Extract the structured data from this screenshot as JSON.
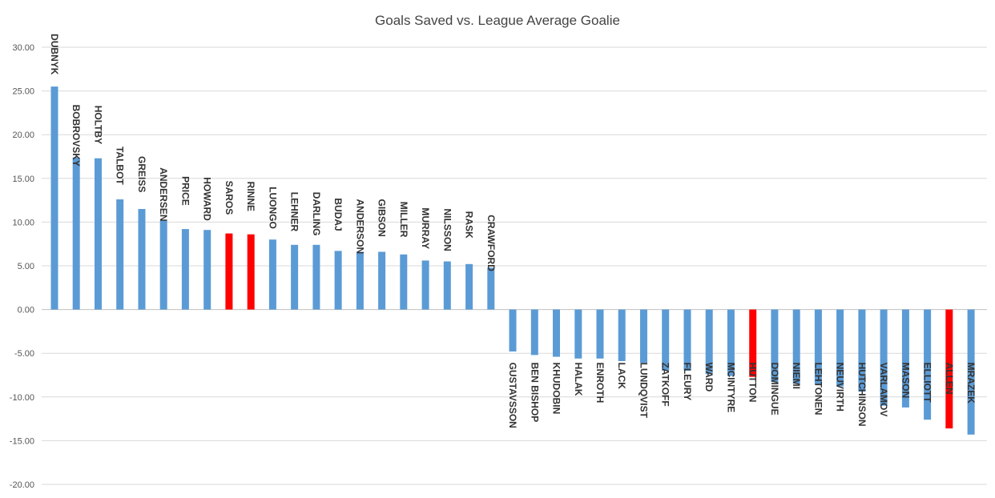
{
  "chart_data": {
    "type": "bar",
    "title": "Goals Saved vs.  League Average Goalie",
    "xlabel": "",
    "ylabel": "",
    "ylim": [
      -20,
      30
    ],
    "yticks": [
      "30.00",
      "25.00",
      "20.00",
      "15.00",
      "10.00",
      "5.00",
      "0.00",
      "-5.00",
      "-10.00",
      "-15.00",
      "-20.00"
    ],
    "ytick_values": [
      30,
      25,
      20,
      15,
      10,
      5,
      0,
      -5,
      -10,
      -15,
      -20
    ],
    "grid": true,
    "legend": "none",
    "colors": {
      "default": "#5b9bd5",
      "highlight": "#ff0000"
    },
    "categories": [
      "DUBNYK",
      "BOBROVSKY",
      "HOLTBY",
      "TALBOT",
      "GREISS",
      "ANDERSEN",
      "PRICE",
      "HOWARD",
      "SAROS",
      "RINNE",
      "LUONGO",
      "LEHNER",
      "DARLING",
      "BUDAJ",
      "ANDERSON",
      "GIBSON",
      "MILLER",
      "MURRAY",
      "NILSSON",
      "RASK",
      "CRAWFORD",
      "GUSTAVSSON",
      "BEN BISHOP",
      "KHUDOBIN",
      "HALAK",
      "ENROTH",
      "LACK",
      "LUNDQVIST",
      "ZATKOFF",
      "FLEURY",
      "WARD",
      "MCINTYRE",
      "HUTTON",
      "DOMINGUE",
      "NIEMI",
      "LEHTONEN",
      "NEUVIRTH",
      "HUTCHINSON",
      "VARLAMOV",
      "MASON",
      "ELLIOTT",
      "ALLEN",
      "MRAZEK"
    ],
    "values": [
      25.5,
      17.4,
      17.3,
      12.6,
      11.5,
      10.2,
      9.2,
      9.1,
      8.7,
      8.6,
      8.0,
      7.4,
      7.4,
      6.7,
      6.6,
      6.6,
      6.3,
      5.6,
      5.5,
      5.2,
      4.8,
      -4.8,
      -5.2,
      -5.4,
      -5.6,
      -5.6,
      -5.9,
      -6.1,
      -7.0,
      -7.0,
      -7.4,
      -7.6,
      -7.7,
      -8.3,
      -8.5,
      -8.6,
      -8.8,
      -9.4,
      -11.0,
      -11.2,
      -12.6,
      -13.6,
      -14.3
    ],
    "highlighted": [
      "SAROS",
      "RINNE",
      "HUTTON",
      "ALLEN"
    ]
  }
}
